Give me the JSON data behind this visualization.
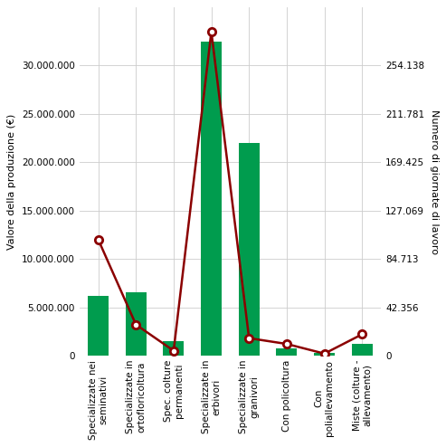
{
  "categories": [
    "Specializzate nei\nseminativi",
    "Specializzate in\nortofloricoltura",
    "Spec. colture\npermanenti",
    "Specializzate in\nerbivori",
    "Specializzate in\ngranivori",
    "Con policoltura",
    "Con\npoliallevamento",
    "Miste (colture -\nallevamento)"
  ],
  "bar_values": [
    6200000,
    6500000,
    1500000,
    32500000,
    22000000,
    700000,
    300000,
    1200000
  ],
  "line_values": [
    12000000,
    3200000,
    500000,
    33500000,
    1800000,
    1200000,
    200000,
    2200000
  ],
  "bar_color": "#009c4e",
  "line_color": "#8b0000",
  "left_ylim": [
    0,
    36000000
  ],
  "right_ylim": [
    0,
    304896
  ],
  "left_yticks": [
    0,
    5000000,
    10000000,
    15000000,
    20000000,
    25000000,
    30000000
  ],
  "right_yticks": [
    0,
    42356,
    84713,
    127069,
    169425,
    211781,
    254138
  ],
  "ylabel_left": "Valore della produzione (€)",
  "ylabel_right": "Numero di giornate di lavoro",
  "background_color": "#ffffff",
  "grid_color": "#cccccc",
  "figsize": [
    4.93,
    4.94
  ],
  "dpi": 100
}
